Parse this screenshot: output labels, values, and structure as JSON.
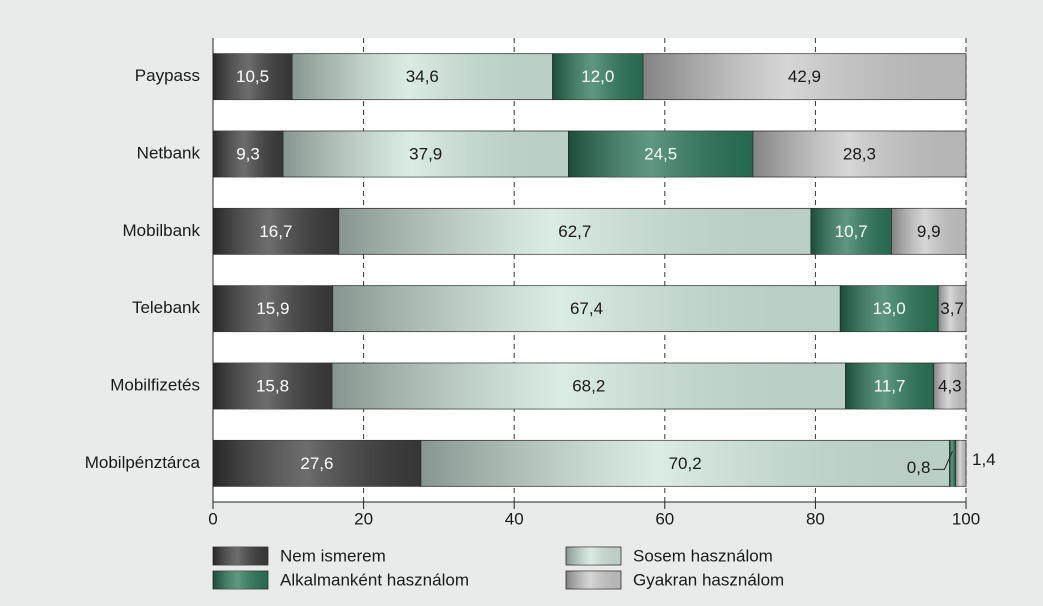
{
  "chart_data": {
    "type": "stacked_barh",
    "categories": [
      "Paypass",
      "Netbank",
      "Mobilbank",
      "Telebank",
      "Mobilfizetés",
      "Mobilpénztárca"
    ],
    "series": [
      {
        "name": "Nem ismerem",
        "color": "#3c3c3c",
        "label_color": "#ffffff",
        "values": [
          10.5,
          9.3,
          16.7,
          15.9,
          15.8,
          27.6
        ],
        "value_labels": [
          "10,5",
          "9,3",
          "16,7",
          "15,9",
          "15,8",
          "27,6"
        ]
      },
      {
        "name": "Sosem használom",
        "color": "#cfe6dc",
        "label_color": "#1a1a1a",
        "values": [
          34.6,
          37.9,
          62.7,
          67.4,
          68.2,
          70.2
        ],
        "value_labels": [
          "34,6",
          "37,9",
          "62,7",
          "67,4",
          "68,2",
          "70,2"
        ]
      },
      {
        "name": "Alkalmanként használom",
        "color": "#2a7657",
        "label_color": "#ffffff",
        "values": [
          12.0,
          24.5,
          10.7,
          13.0,
          11.7,
          0.8
        ],
        "value_labels": [
          "12,0",
          "24,5",
          "10,7",
          "13,0",
          "11,7",
          "0,8"
        ]
      },
      {
        "name": "Gyakran használom",
        "color": "#c9c9c9",
        "label_color": "#1a1a1a",
        "values": [
          42.9,
          28.3,
          9.9,
          3.7,
          4.3,
          1.4
        ],
        "value_labels": [
          "42,9",
          "28,3",
          "9,9",
          "3,7",
          "4,3",
          "1,4"
        ]
      }
    ],
    "xlim": [
      0,
      100
    ],
    "xticks": [
      0,
      20,
      40,
      60,
      80,
      100
    ],
    "grid": true
  }
}
